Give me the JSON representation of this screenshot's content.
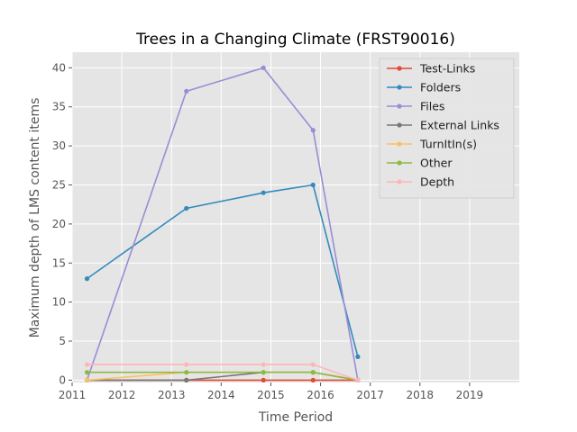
{
  "chart_data": {
    "type": "line",
    "title": "Trees in a Changing Climate (FRST90016)",
    "xlabel": "Time Period",
    "ylabel": "Maximum depth of LMS content items",
    "xlim": [
      2011.0,
      2020.0
    ],
    "ylim": [
      -0.3,
      42.0
    ],
    "x_ticks": [
      "2011",
      "2012",
      "2013",
      "2014",
      "2015",
      "2016",
      "2017",
      "2018",
      "2019"
    ],
    "y_ticks": [
      "0",
      "5",
      "10",
      "15",
      "20",
      "25",
      "30",
      "35",
      "40"
    ],
    "grid": true,
    "legend_position": "top-right",
    "x": [
      2011.3,
      2013.3,
      2014.85,
      2015.85,
      2016.75
    ],
    "series": [
      {
        "name": "Test-Links",
        "color": "#e24a33",
        "values": [
          0,
          0,
          0,
          0,
          0
        ]
      },
      {
        "name": "Folders",
        "color": "#348abd",
        "values": [
          13,
          22,
          24,
          25,
          3
        ]
      },
      {
        "name": "Files",
        "color": "#988ed5",
        "values": [
          0,
          37,
          40,
          32,
          0
        ]
      },
      {
        "name": "External Links",
        "color": "#777777",
        "values": [
          0,
          0,
          1,
          1,
          0
        ]
      },
      {
        "name": "TurnItIn(s)",
        "color": "#fbc15e",
        "values": [
          0,
          1,
          1,
          1,
          0
        ]
      },
      {
        "name": "Other",
        "color": "#8eba42",
        "values": [
          1,
          1,
          1,
          1,
          0
        ]
      },
      {
        "name": "Depth",
        "color": "#ffb5b8",
        "values": [
          2,
          2,
          2,
          2,
          0
        ]
      }
    ]
  }
}
